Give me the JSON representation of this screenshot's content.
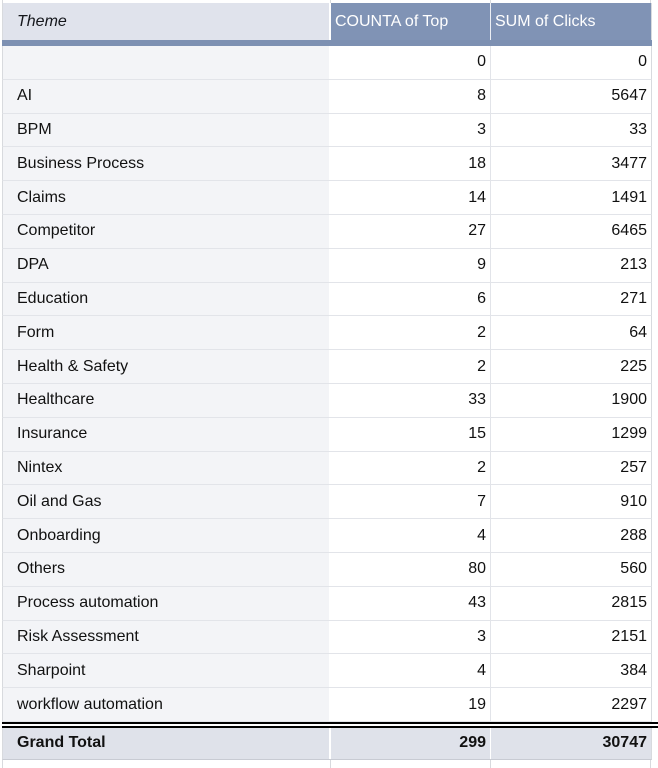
{
  "table": {
    "columns": [
      {
        "label": "Theme"
      },
      {
        "label": "COUNTA of Top"
      },
      {
        "label": "SUM of Clicks"
      }
    ],
    "rows": [
      {
        "theme": "",
        "counta": "0",
        "clicks": "0"
      },
      {
        "theme": "AI",
        "counta": "8",
        "clicks": "5647"
      },
      {
        "theme": "BPM",
        "counta": "3",
        "clicks": "33"
      },
      {
        "theme": "Business Process",
        "counta": "18",
        "clicks": "3477"
      },
      {
        "theme": "Claims",
        "counta": "14",
        "clicks": "1491"
      },
      {
        "theme": "Competitor",
        "counta": "27",
        "clicks": "6465"
      },
      {
        "theme": "DPA",
        "counta": "9",
        "clicks": "213"
      },
      {
        "theme": "Education",
        "counta": "6",
        "clicks": "271"
      },
      {
        "theme": "Form",
        "counta": "2",
        "clicks": "64"
      },
      {
        "theme": "Health & Safety",
        "counta": "2",
        "clicks": "225"
      },
      {
        "theme": "Healthcare",
        "counta": "33",
        "clicks": "1900"
      },
      {
        "theme": "Insurance",
        "counta": "15",
        "clicks": "1299"
      },
      {
        "theme": "Nintex",
        "counta": "2",
        "clicks": "257"
      },
      {
        "theme": "Oil and Gas",
        "counta": "7",
        "clicks": "910"
      },
      {
        "theme": "Onboarding",
        "counta": "4",
        "clicks": "288"
      },
      {
        "theme": "Others",
        "counta": "80",
        "clicks": "560"
      },
      {
        "theme": "Process automation",
        "counta": "43",
        "clicks": "2815"
      },
      {
        "theme": "Risk Assessment",
        "counta": "3",
        "clicks": "2151"
      },
      {
        "theme": "Sharpoint",
        "counta": "4",
        "clicks": "384"
      },
      {
        "theme": "workflow automation",
        "counta": "19",
        "clicks": "2297"
      }
    ],
    "grand_total": {
      "label": "Grand Total",
      "counta": "299",
      "clicks": "30747"
    }
  },
  "colors": {
    "header_fill": "#8093b5",
    "header_accent_bar": "#7d90b2",
    "header_theme_fill": "#e0e3ec",
    "header_text": "#ffffff",
    "theme_column_fill": "#f3f4f7",
    "grand_total_fill": "#dfe2ea",
    "gridline": "#e2e4e9",
    "body_text": "#111111"
  }
}
